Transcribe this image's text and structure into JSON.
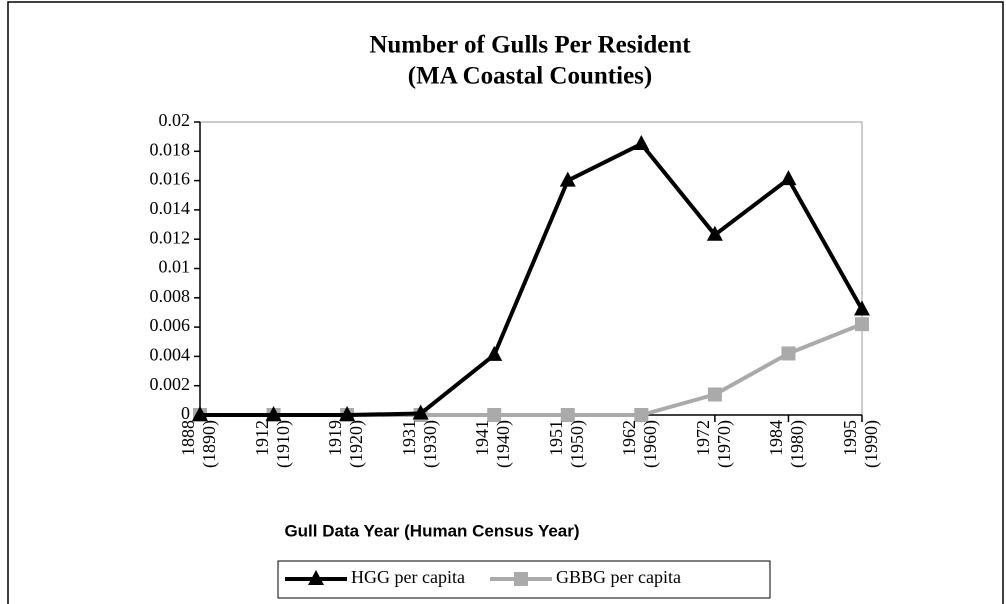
{
  "chart_data": {
    "type": "line",
    "title": "Number of Gulls Per Resident",
    "subtitle": "(MA Coastal Counties)",
    "x_label": "Gull Data Year (Human Census Year)",
    "categories": [
      "1888 (1890)",
      "1912 (1910)",
      "1919 (1920)",
      "1931 (1930)",
      "1941 (1940)",
      "1951 (1950)",
      "1962 (1960)",
      "1972 (1970)",
      "1984 (1980)",
      "1995 (1990)"
    ],
    "series": [
      {
        "name": "HGG per capita",
        "color": "#000000",
        "marker": "triangle",
        "values": [
          0,
          0,
          0,
          0.0001,
          0.0041,
          0.016,
          0.0185,
          0.0123,
          0.0161,
          0.0072
        ]
      },
      {
        "name": "GBBG per capita",
        "color": "#aaaaaa",
        "marker": "square",
        "values": [
          0,
          0,
          0,
          0,
          0,
          0,
          0,
          0.0014,
          0.0042,
          0.0062
        ]
      }
    ],
    "ylim": [
      0,
      0.02
    ],
    "yticks": [
      0,
      0.002,
      0.004,
      0.006,
      0.008,
      0.01,
      0.012,
      0.014,
      0.016,
      0.018,
      0.02
    ],
    "grid": false,
    "legend": "bottom"
  }
}
